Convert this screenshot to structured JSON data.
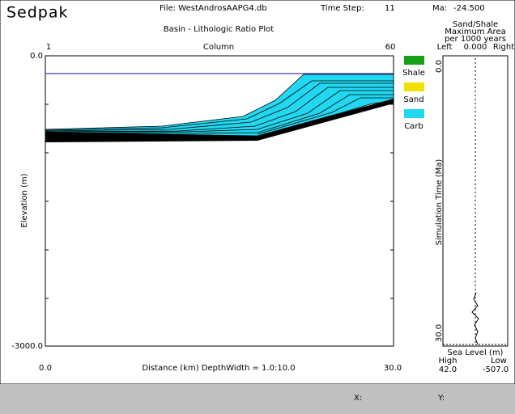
{
  "header": {
    "app": "Sedpak",
    "file": "File: WestAndrosAAPG4.db",
    "time_step_label": "Time Step:",
    "time_step": "11",
    "ma_label": "Ma:",
    "ma": "-24.500"
  },
  "plot": {
    "title": "Basin - Lithologic Ratio Plot",
    "column_axis": {
      "start": "1",
      "label": "Column",
      "end": "60"
    },
    "y_axis": {
      "label": "Elevation (m)",
      "top": "0.0",
      "bottom": "-3000.0"
    },
    "x_axis": {
      "start": "0.0",
      "label": "Distance (km)  DepthWidth = 1.0:10.0",
      "end": "30.0"
    }
  },
  "legend": [
    {
      "label": "Shale",
      "color": "#16a016"
    },
    {
      "label": "Sand",
      "color": "#f0e000"
    },
    {
      "label": "Carb",
      "color": "#22d8f0"
    }
  ],
  "side_panel": {
    "title": [
      "Sand/Shale",
      "Maximum Area",
      "per 1000 years"
    ],
    "left": "Left",
    "value": "0.000",
    "right": "Right",
    "time_top": "0.0",
    "time_bottom": "30.0",
    "time_label": "Simulation Time (Ma)",
    "sea_level_label": "Sea Level (m)",
    "high_label": "High",
    "low_label": "Low",
    "high": "42.0",
    "low": "-507.0"
  },
  "footer": {
    "x_label": "X:",
    "y_label": "Y:"
  }
}
